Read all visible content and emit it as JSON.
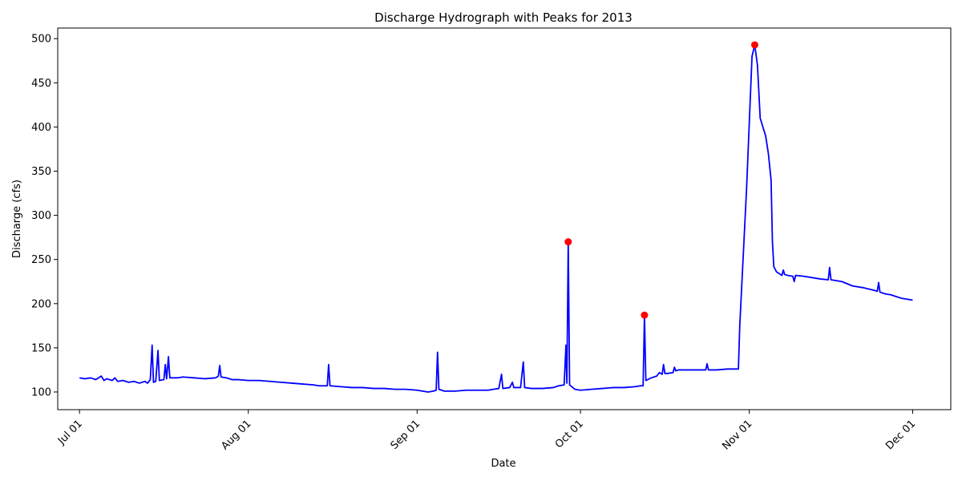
{
  "chart_data": {
    "type": "line",
    "title": "Discharge Hydrograph with Peaks for 2013",
    "xlabel": "Date",
    "ylabel": "Discharge (cfs)",
    "xlim": [
      "2013-06-27",
      "2013-12-08"
    ],
    "ylim": [
      80,
      512
    ],
    "grid": false,
    "x_ticks": [
      {
        "date": "2013-07-01",
        "label": "Jul 01"
      },
      {
        "date": "2013-08-01",
        "label": "Aug 01"
      },
      {
        "date": "2013-09-01",
        "label": "Sep 01"
      },
      {
        "date": "2013-10-01",
        "label": "Oct 01"
      },
      {
        "date": "2013-11-01",
        "label": "Nov 01"
      },
      {
        "date": "2013-12-01",
        "label": "Dec 01"
      }
    ],
    "y_ticks": [
      100,
      150,
      200,
      250,
      300,
      350,
      400,
      450,
      500
    ],
    "series": [
      {
        "color": "#0000ff",
        "points": [
          [
            "2013-07-01T00:00",
            116
          ],
          [
            "2013-07-02T00:00",
            115
          ],
          [
            "2013-07-03T00:00",
            116
          ],
          [
            "2013-07-04T00:00",
            114
          ],
          [
            "2013-07-05T00:00",
            118
          ],
          [
            "2013-07-05T12:00",
            113
          ],
          [
            "2013-07-06T00:00",
            115
          ],
          [
            "2013-07-07T00:00",
            113
          ],
          [
            "2013-07-07T12:00",
            116
          ],
          [
            "2013-07-08T00:00",
            112
          ],
          [
            "2013-07-09T00:00",
            113
          ],
          [
            "2013-07-10T00:00",
            111
          ],
          [
            "2013-07-11T00:00",
            112
          ],
          [
            "2013-07-12T00:00",
            110
          ],
          [
            "2013-07-13T00:00",
            112
          ],
          [
            "2013-07-13T12:00",
            110
          ],
          [
            "2013-07-14T00:00",
            114
          ],
          [
            "2013-07-14T08:00",
            153
          ],
          [
            "2013-07-14T14:00",
            111
          ],
          [
            "2013-07-15T00:00",
            112
          ],
          [
            "2013-07-15T10:00",
            147
          ],
          [
            "2013-07-15T16:00",
            113
          ],
          [
            "2013-07-16T12:00",
            114
          ],
          [
            "2013-07-16T18:00",
            131
          ],
          [
            "2013-07-17T00:00",
            115
          ],
          [
            "2013-07-17T08:00",
            140
          ],
          [
            "2013-07-17T14:00",
            116
          ],
          [
            "2013-07-19T00:00",
            116
          ],
          [
            "2013-07-20T00:00",
            117
          ],
          [
            "2013-07-22T00:00",
            116
          ],
          [
            "2013-07-24T00:00",
            115
          ],
          [
            "2013-07-26T00:00",
            116
          ],
          [
            "2013-07-26T12:00",
            118
          ],
          [
            "2013-07-26T18:00",
            130
          ],
          [
            "2013-07-27T00:00",
            117
          ],
          [
            "2013-07-28T00:00",
            116
          ],
          [
            "2013-07-29T00:00",
            114
          ],
          [
            "2013-07-30T00:00",
            114
          ],
          [
            "2013-08-01T00:00",
            113
          ],
          [
            "2013-08-03T00:00",
            113
          ],
          [
            "2013-08-05T00:00",
            112
          ],
          [
            "2013-08-07T00:00",
            111
          ],
          [
            "2013-08-09T00:00",
            110
          ],
          [
            "2013-08-11T00:00",
            109
          ],
          [
            "2013-08-13T00:00",
            108
          ],
          [
            "2013-08-14T00:00",
            107
          ],
          [
            "2013-08-15T12:00",
            107
          ],
          [
            "2013-08-15T18:00",
            131
          ],
          [
            "2013-08-16T00:00",
            107
          ],
          [
            "2013-08-18T00:00",
            106
          ],
          [
            "2013-08-20T00:00",
            105
          ],
          [
            "2013-08-22T00:00",
            105
          ],
          [
            "2013-08-24T00:00",
            104
          ],
          [
            "2013-08-26T00:00",
            104
          ],
          [
            "2013-08-28T00:00",
            103
          ],
          [
            "2013-08-30T00:00",
            103
          ],
          [
            "2013-09-01T00:00",
            102
          ],
          [
            "2013-09-02T00:00",
            101
          ],
          [
            "2013-09-03T00:00",
            100
          ],
          [
            "2013-09-04T00:00",
            101
          ],
          [
            "2013-09-04T12:00",
            102
          ],
          [
            "2013-09-04T18:00",
            145
          ],
          [
            "2013-09-05T00:00",
            103
          ],
          [
            "2013-09-06T00:00",
            101
          ],
          [
            "2013-09-08T00:00",
            101
          ],
          [
            "2013-09-10T00:00",
            102
          ],
          [
            "2013-09-12T00:00",
            102
          ],
          [
            "2013-09-14T00:00",
            102
          ],
          [
            "2013-09-15T00:00",
            103
          ],
          [
            "2013-09-16T00:00",
            104
          ],
          [
            "2013-09-16T12:00",
            120
          ],
          [
            "2013-09-16T18:00",
            104
          ],
          [
            "2013-09-18T00:00",
            105
          ],
          [
            "2013-09-18T12:00",
            111
          ],
          [
            "2013-09-18T18:00",
            105
          ],
          [
            "2013-09-20T00:00",
            105
          ],
          [
            "2013-09-20T12:00",
            134
          ],
          [
            "2013-09-20T18:00",
            105
          ],
          [
            "2013-09-22T00:00",
            104
          ],
          [
            "2013-09-24T00:00",
            104
          ],
          [
            "2013-09-26T00:00",
            105
          ],
          [
            "2013-09-27T00:00",
            107
          ],
          [
            "2013-09-28T00:00",
            108
          ],
          [
            "2013-09-28T08:00",
            153
          ],
          [
            "2013-09-28T12:00",
            110
          ],
          [
            "2013-09-28T18:00",
            270
          ],
          [
            "2013-09-29T00:00",
            108
          ],
          [
            "2013-09-30T00:00",
            103
          ],
          [
            "2013-10-01T00:00",
            102
          ],
          [
            "2013-10-03T00:00",
            103
          ],
          [
            "2013-10-05T00:00",
            104
          ],
          [
            "2013-10-07T00:00",
            105
          ],
          [
            "2013-10-09T00:00",
            105
          ],
          [
            "2013-10-11T00:00",
            106
          ],
          [
            "2013-10-12T00:00",
            107
          ],
          [
            "2013-10-12T12:00",
            107
          ],
          [
            "2013-10-12T18:00",
            187
          ],
          [
            "2013-10-13T00:00",
            113
          ],
          [
            "2013-10-14T00:00",
            116
          ],
          [
            "2013-10-15T00:00",
            118
          ],
          [
            "2013-10-15T12:00",
            122
          ],
          [
            "2013-10-16T00:00",
            120
          ],
          [
            "2013-10-16T06:00",
            131
          ],
          [
            "2013-10-16T12:00",
            121
          ],
          [
            "2013-10-17T00:00",
            121
          ],
          [
            "2013-10-18T00:00",
            122
          ],
          [
            "2013-10-18T06:00",
            128
          ],
          [
            "2013-10-18T12:00",
            124
          ],
          [
            "2013-10-19T00:00",
            125
          ],
          [
            "2013-10-21T00:00",
            125
          ],
          [
            "2013-10-23T00:00",
            125
          ],
          [
            "2013-10-24T00:00",
            125
          ],
          [
            "2013-10-24T06:00",
            132
          ],
          [
            "2013-10-24T12:00",
            125
          ],
          [
            "2013-10-26T00:00",
            125
          ],
          [
            "2013-10-28T00:00",
            126
          ],
          [
            "2013-10-29T00:00",
            126
          ],
          [
            "2013-10-30T00:00",
            126
          ],
          [
            "2013-10-30T06:00",
            175
          ],
          [
            "2013-10-31T12:00",
            330
          ],
          [
            "2013-11-01T12:00",
            480
          ],
          [
            "2013-11-02T00:00",
            493
          ],
          [
            "2013-11-02T12:00",
            470
          ],
          [
            "2013-11-03T00:00",
            410
          ],
          [
            "2013-11-04T00:00",
            390
          ],
          [
            "2013-11-04T12:00",
            370
          ],
          [
            "2013-11-05T00:00",
            340
          ],
          [
            "2013-11-05T06:00",
            270
          ],
          [
            "2013-11-05T12:00",
            242
          ],
          [
            "2013-11-06T00:00",
            236
          ],
          [
            "2013-11-07T00:00",
            232
          ],
          [
            "2013-11-07T06:00",
            238
          ],
          [
            "2013-11-07T12:00",
            233
          ],
          [
            "2013-11-08T00:00",
            232
          ],
          [
            "2013-11-09T00:00",
            231
          ],
          [
            "2013-11-09T06:00",
            225
          ],
          [
            "2013-11-09T12:00",
            232
          ],
          [
            "2013-11-11T00:00",
            231
          ],
          [
            "2013-11-13T00:00",
            229
          ],
          [
            "2013-11-14T00:00",
            228
          ],
          [
            "2013-11-15T12:00",
            227
          ],
          [
            "2013-11-15T18:00",
            241
          ],
          [
            "2013-11-16T00:00",
            227
          ],
          [
            "2013-11-18T00:00",
            225
          ],
          [
            "2013-11-20T00:00",
            220
          ],
          [
            "2013-11-22T00:00",
            218
          ],
          [
            "2013-11-24T00:00",
            215
          ],
          [
            "2013-11-24T12:00",
            214
          ],
          [
            "2013-11-24T18:00",
            224
          ],
          [
            "2013-11-25T00:00",
            213
          ],
          [
            "2013-11-26T00:00",
            211
          ],
          [
            "2013-11-27T00:00",
            210
          ],
          [
            "2013-11-28T00:00",
            208
          ],
          [
            "2013-11-29T00:00",
            206
          ],
          [
            "2013-11-30T00:00",
            205
          ],
          [
            "2013-12-01T00:00",
            204
          ]
        ]
      }
    ],
    "peaks": {
      "color": "#ff0000",
      "points": [
        [
          "2013-09-28T18:00",
          270
        ],
        [
          "2013-10-12T18:00",
          187
        ],
        [
          "2013-11-02T00:00",
          493
        ]
      ]
    }
  }
}
